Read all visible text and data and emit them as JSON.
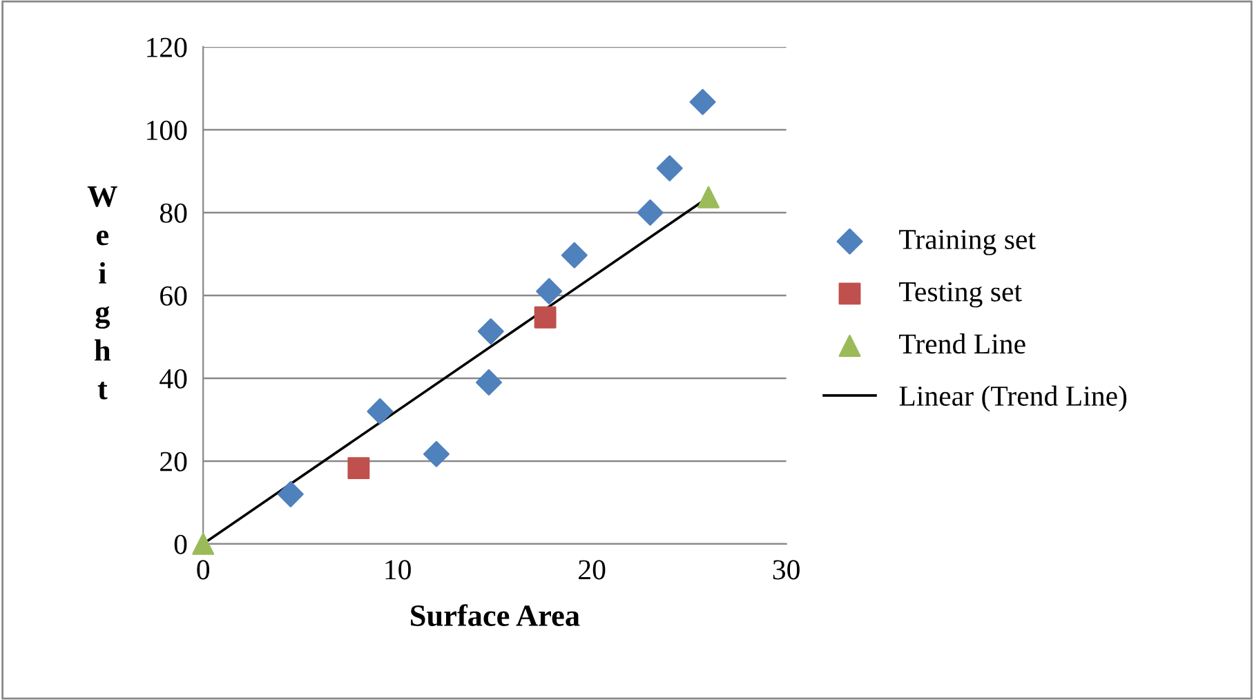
{
  "chart_data": {
    "type": "scatter",
    "xlabel": "Surface Area",
    "ylabel": "Weight",
    "xlim": [
      0,
      30
    ],
    "xticks": [
      0,
      10,
      20,
      30
    ],
    "ylim": [
      0,
      120
    ],
    "yticks": [
      0,
      20,
      40,
      60,
      80,
      100,
      120
    ],
    "grid": "y",
    "legend": "right",
    "series": [
      {
        "name": "Training set",
        "marker": "diamond",
        "color": "#4f81bd",
        "x": [
          4.5,
          9.1,
          12.0,
          14.8,
          14.7,
          17.8,
          19.1,
          23.0,
          24.0,
          25.7
        ],
        "values": [
          12,
          32,
          21.7,
          51.3,
          39,
          61,
          69.7,
          80,
          90.7,
          106.7
        ]
      },
      {
        "name": "Testing set",
        "marker": "square",
        "color": "#c0504d",
        "x": [
          8.0,
          17.6
        ],
        "values": [
          18.3,
          54.7
        ]
      },
      {
        "name": "Trend Line",
        "marker": "triangle",
        "color": "#9bbb59",
        "x": [
          0,
          26.0
        ],
        "values": [
          0,
          83.7
        ]
      },
      {
        "name": "Linear (Trend Line)",
        "type": "line",
        "marker": "none",
        "line_style": "solid",
        "color": "#000000",
        "x": [
          0,
          26.0
        ],
        "values": [
          0,
          83.7
        ]
      }
    ]
  }
}
